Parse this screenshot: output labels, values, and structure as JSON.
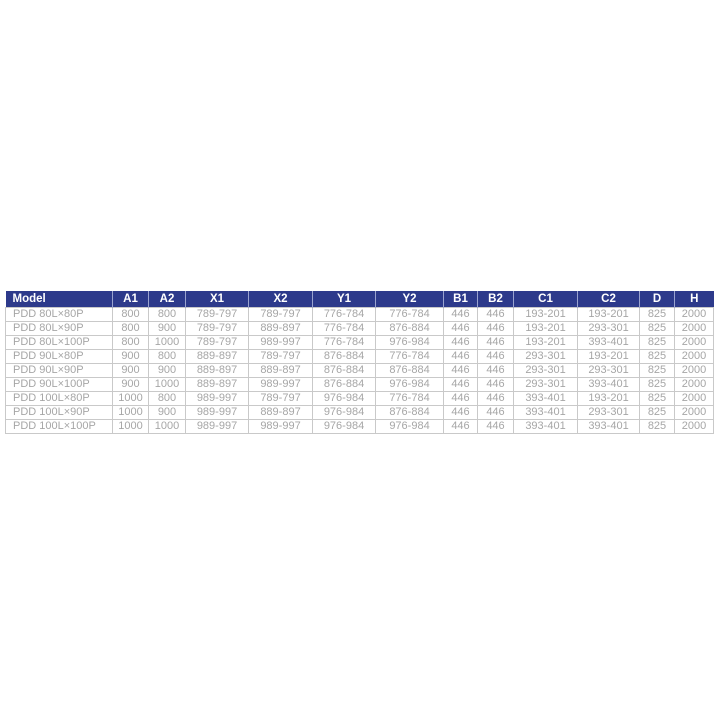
{
  "page": {
    "background": "#ffffff"
  },
  "chart_data": {
    "type": "table",
    "title": "",
    "legend": "none",
    "columns": [
      "Model",
      "A1",
      "A2",
      "X1",
      "X2",
      "Y1",
      "Y2",
      "B1",
      "B2",
      "C1",
      "C2",
      "D",
      "H"
    ],
    "rows": [
      [
        "PDD 80L×80P",
        "800",
        "800",
        "789-797",
        "789-797",
        "776-784",
        "776-784",
        "446",
        "446",
        "193-201",
        "193-201",
        "825",
        "2000"
      ],
      [
        "PDD 80L×90P",
        "800",
        "900",
        "789-797",
        "889-897",
        "776-784",
        "876-884",
        "446",
        "446",
        "193-201",
        "293-301",
        "825",
        "2000"
      ],
      [
        "PDD 80L×100P",
        "800",
        "1000",
        "789-797",
        "989-997",
        "776-784",
        "976-984",
        "446",
        "446",
        "193-201",
        "393-401",
        "825",
        "2000"
      ],
      [
        "PDD 90L×80P",
        "900",
        "800",
        "889-897",
        "789-797",
        "876-884",
        "776-784",
        "446",
        "446",
        "293-301",
        "193-201",
        "825",
        "2000"
      ],
      [
        "PDD 90L×90P",
        "900",
        "900",
        "889-897",
        "889-897",
        "876-884",
        "876-884",
        "446",
        "446",
        "293-301",
        "293-301",
        "825",
        "2000"
      ],
      [
        "PDD 90L×100P",
        "900",
        "1000",
        "889-897",
        "989-997",
        "876-884",
        "976-984",
        "446",
        "446",
        "293-301",
        "393-401",
        "825",
        "2000"
      ],
      [
        "PDD 100L×80P",
        "1000",
        "800",
        "989-997",
        "789-797",
        "976-984",
        "776-784",
        "446",
        "446",
        "393-401",
        "193-201",
        "825",
        "2000"
      ],
      [
        "PDD 100L×90P",
        "1000",
        "900",
        "989-997",
        "889-897",
        "976-984",
        "876-884",
        "446",
        "446",
        "393-401",
        "293-301",
        "825",
        "2000"
      ],
      [
        "PDD 100L×100P",
        "1000",
        "1000",
        "989-997",
        "989-997",
        "976-984",
        "976-984",
        "446",
        "446",
        "393-401",
        "393-401",
        "825",
        "2000"
      ]
    ],
    "colors": {
      "header_bg": "#2d3a8b",
      "header_text": "#ffffff",
      "body_text": "#a6a6a6",
      "grid_border": "#c9c9c9"
    }
  }
}
